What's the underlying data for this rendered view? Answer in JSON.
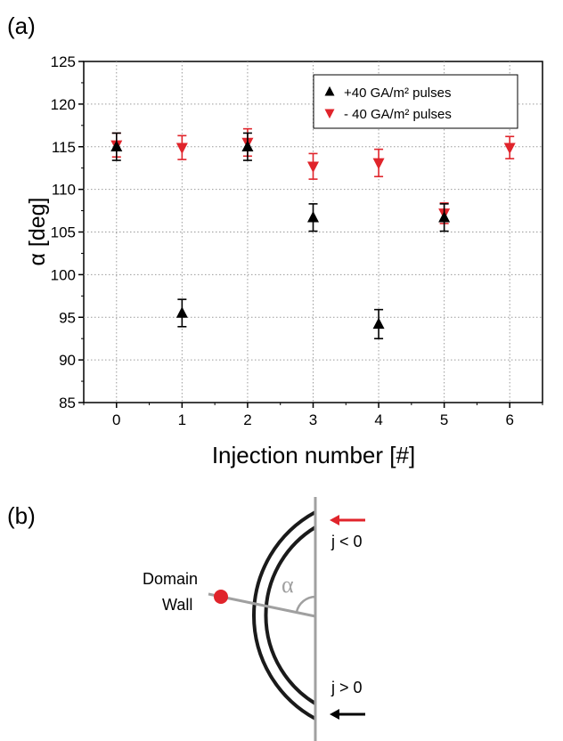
{
  "panel_a_label": "(a)",
  "panel_b_label": "(b)",
  "chart_data": {
    "type": "scatter",
    "xlabel": "Injection number [#]",
    "ylabel": "α [deg]",
    "xlim": [
      -0.5,
      6.5
    ],
    "ylim": [
      85,
      125
    ],
    "xticks": [
      0,
      1,
      2,
      3,
      4,
      5,
      6
    ],
    "yticks": [
      85,
      90,
      95,
      100,
      105,
      110,
      115,
      120,
      125
    ],
    "grid": true,
    "legend_position": "top-right",
    "series": [
      {
        "name": "+40 GA/m² pulses",
        "marker": "triangle-up",
        "color": "#000000",
        "x": [
          0,
          1,
          2,
          3,
          4,
          5
        ],
        "y": [
          115.0,
          95.5,
          115.0,
          106.7,
          94.2,
          106.7
        ],
        "yerr": [
          1.6,
          1.6,
          1.6,
          1.6,
          1.7,
          1.6
        ]
      },
      {
        "name": "- 40 GA/m² pulses",
        "marker": "triangle-down",
        "color": "#e0242b",
        "x": [
          0,
          1,
          2,
          3,
          4,
          5,
          6
        ],
        "y": [
          115.2,
          114.9,
          115.5,
          112.7,
          113.1,
          107.2,
          114.9
        ],
        "yerr": [
          1.4,
          1.4,
          1.6,
          1.5,
          1.6,
          1.2,
          1.3
        ]
      }
    ]
  },
  "diagram": {
    "domain_wall_label_line1": "Domain",
    "domain_wall_label_line2": "Wall",
    "angle_label": "α",
    "current_negative_label": "j < 0",
    "current_positive_label": "j > 0",
    "arrow_top_color": "#e0242b",
    "arrow_bottom_color": "#000000",
    "wall_dot_color": "#e0242b",
    "ring_color": "#1a1a1a",
    "axis_line_color": "#a0a0a0"
  }
}
